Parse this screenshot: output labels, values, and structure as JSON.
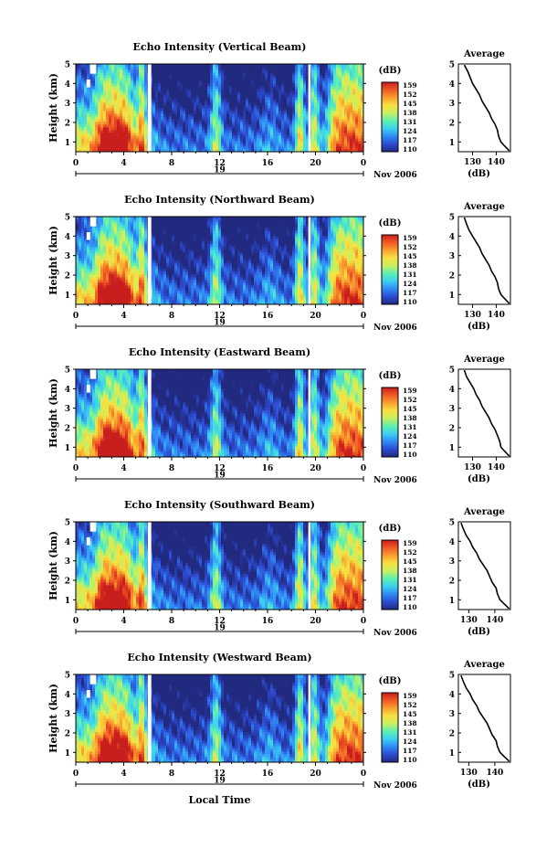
{
  "chart_data": {
    "type": "heatmap",
    "shared": {
      "ylabel": "Height (km)",
      "y_ticks": [
        "1",
        "2",
        "3",
        "4",
        "5"
      ],
      "ylim": [
        0.5,
        5.0
      ],
      "x_ticks": [
        "0",
        "4",
        "8",
        "12",
        "16",
        "20",
        "0"
      ],
      "xlim": [
        0,
        24
      ],
      "date_label": "19",
      "month_label": "Nov 2006",
      "xlabel": "Local Time",
      "colorbar_unit": "(dB)",
      "colorbar_ticks": [
        "159",
        "152",
        "145",
        "138",
        "131",
        "124",
        "117",
        "110"
      ],
      "colorbar_range": [
        110,
        159
      ],
      "avg_title": "Average",
      "avg_xlabel": "(dB)",
      "colormap": [
        "#222a80",
        "#2c4bd1",
        "#2f8bf5",
        "#3dd0f0",
        "#5df0b0",
        "#c8f060",
        "#f8e040",
        "#f8a030",
        "#f05a25",
        "#c81e1e"
      ]
    },
    "panels": [
      {
        "title": "Echo Intensity (Vertical Beam)",
        "avg_xticks": [
          "130",
          "140"
        ],
        "avg_xlim": [
          124,
          146
        ],
        "avg_profile": [
          [
            4.95,
            126.5
          ],
          [
            4.6,
            128
          ],
          [
            4.3,
            129
          ],
          [
            4.0,
            130
          ],
          [
            3.7,
            131.5
          ],
          [
            3.4,
            133
          ],
          [
            3.1,
            134
          ],
          [
            2.8,
            135.5
          ],
          [
            2.5,
            137
          ],
          [
            2.2,
            138
          ],
          [
            1.9,
            139.5
          ],
          [
            1.6,
            140.5
          ],
          [
            1.3,
            141
          ],
          [
            1.0,
            142
          ],
          [
            0.8,
            143.5
          ],
          [
            0.55,
            145.5
          ]
        ]
      },
      {
        "title": "Echo Intensity (Northward Beam)",
        "avg_xticks": [
          "130",
          "140"
        ],
        "avg_xlim": [
          124,
          146
        ],
        "avg_profile": [
          [
            4.95,
            126.5
          ],
          [
            4.6,
            127.5
          ],
          [
            4.3,
            128.5
          ],
          [
            4.0,
            130
          ],
          [
            3.7,
            131.5
          ],
          [
            3.4,
            133
          ],
          [
            3.1,
            134
          ],
          [
            2.8,
            135.5
          ],
          [
            2.5,
            137
          ],
          [
            2.2,
            138
          ],
          [
            1.9,
            139.5
          ],
          [
            1.6,
            140.5
          ],
          [
            1.3,
            141
          ],
          [
            1.0,
            142
          ],
          [
            0.8,
            143.5
          ],
          [
            0.55,
            145.5
          ]
        ]
      },
      {
        "title": "Echo Intensity (Eastward Beam)",
        "avg_xticks": [
          "130",
          "140"
        ],
        "avg_xlim": [
          124,
          146
        ],
        "avg_profile": [
          [
            4.95,
            126.5
          ],
          [
            4.6,
            127.5
          ],
          [
            4.3,
            129
          ],
          [
            4.0,
            130.5
          ],
          [
            3.7,
            131.5
          ],
          [
            3.4,
            133
          ],
          [
            3.1,
            134
          ],
          [
            2.8,
            135.5
          ],
          [
            2.5,
            137
          ],
          [
            2.2,
            138
          ],
          [
            1.9,
            139.5
          ],
          [
            1.6,
            140.5
          ],
          [
            1.3,
            141.5
          ],
          [
            1.0,
            142
          ],
          [
            0.8,
            143.5
          ],
          [
            0.55,
            145.5
          ]
        ]
      },
      {
        "title": "Echo Intensity (Southward Beam)",
        "avg_xticks": [
          "130",
          "140"
        ],
        "avg_xlim": [
          126,
          146
        ],
        "avg_profile": [
          [
            4.95,
            127
          ],
          [
            4.6,
            128
          ],
          [
            4.3,
            129
          ],
          [
            4.0,
            130.5
          ],
          [
            3.7,
            131.5
          ],
          [
            3.4,
            133
          ],
          [
            3.1,
            134
          ],
          [
            2.8,
            135.5
          ],
          [
            2.5,
            137
          ],
          [
            2.2,
            138
          ],
          [
            1.9,
            139
          ],
          [
            1.6,
            140.5
          ],
          [
            1.3,
            141
          ],
          [
            1.0,
            142
          ],
          [
            0.8,
            143.5
          ],
          [
            0.55,
            145.5
          ]
        ]
      },
      {
        "title": "Echo Intensity (Westward Beam)",
        "avg_xticks": [
          "130",
          "140"
        ],
        "avg_xlim": [
          126,
          146
        ],
        "avg_profile": [
          [
            4.95,
            127
          ],
          [
            4.6,
            128
          ],
          [
            4.3,
            129
          ],
          [
            4.0,
            130.5
          ],
          [
            3.7,
            131.5
          ],
          [
            3.4,
            133
          ],
          [
            3.1,
            134
          ],
          [
            2.8,
            135.5
          ],
          [
            2.5,
            137
          ],
          [
            2.2,
            138
          ],
          [
            1.9,
            139
          ],
          [
            1.6,
            140.5
          ],
          [
            1.3,
            141
          ],
          [
            1.0,
            142
          ],
          [
            0.8,
            143.5
          ],
          [
            0.55,
            145.5
          ]
        ]
      }
    ]
  }
}
